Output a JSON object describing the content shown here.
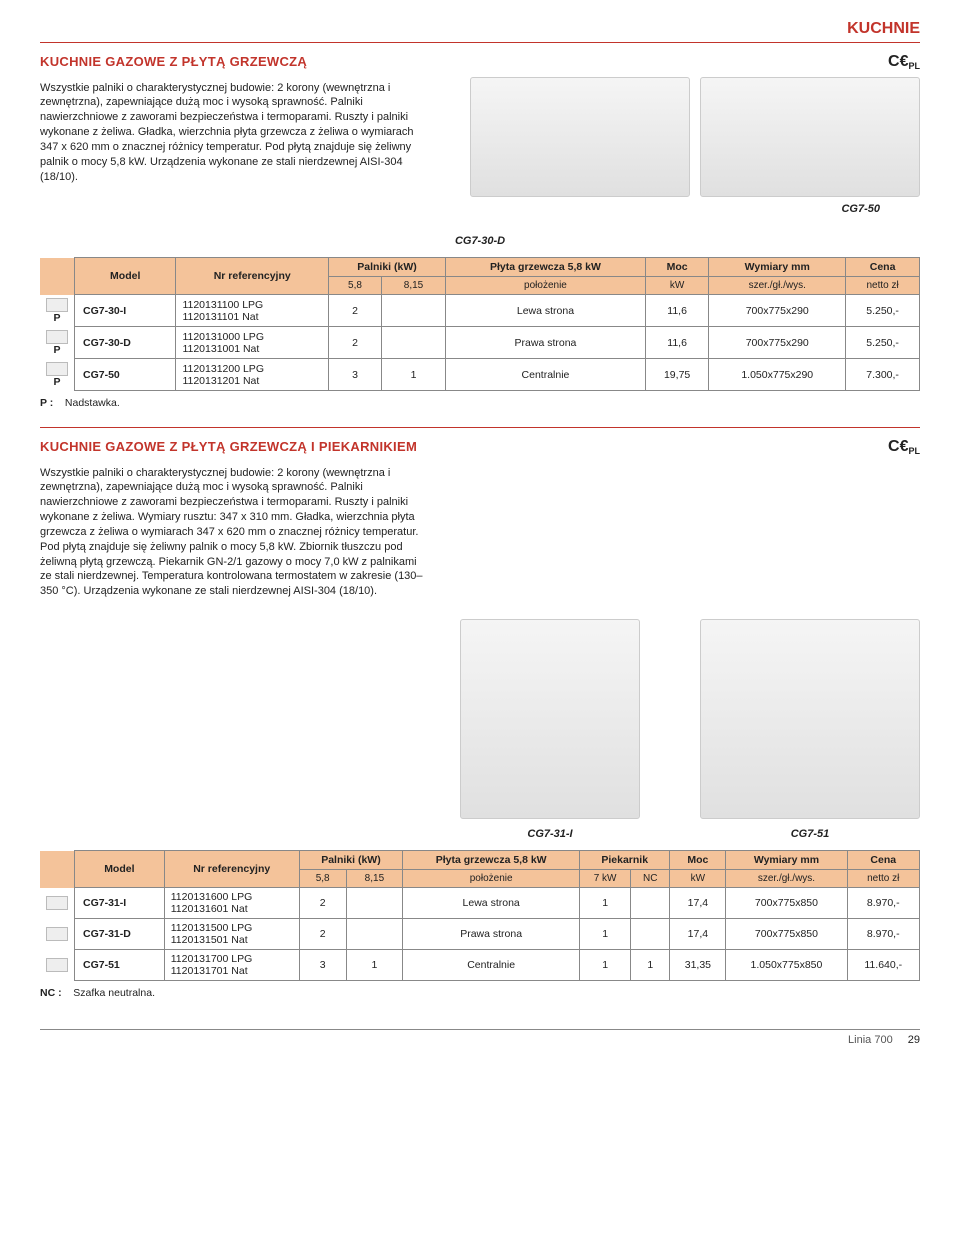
{
  "header": {
    "category": "KUCHNIE"
  },
  "section1": {
    "title": "KUCHNIE GAZOWE Z PŁYTĄ GRZEWCZĄ",
    "ce_label": "PL",
    "description": "Wszystkie palniki o charakterystycznej budowie: 2 korony (wewnętrzna i zewnętrzna), zapewniające dużą moc i wysoką sprawność. Palniki nawierzchniowe z zaworami bezpieczeństwa i termoparami. Ruszty i palniki wykonane z żeliwa. Gładka, wierzchnia płyta grzewcza z żeliwa o wymiarach 347 x 620 mm o znacznej różnicy temperatur. Pod płytą znajduje się żeliwny palnik o mocy 5,8 kW. Urządzenia wykonane ze stali nierdzewnej AISI-304 (18/10).",
    "img_caption_main": "CG7-50",
    "img_caption_mid": "CG7-30-D",
    "table": {
      "headers": {
        "model": "Model",
        "ref": "Nr referencyjny",
        "burners": "Palniki (kW)",
        "b58": "5,8",
        "b815": "8,15",
        "plate": "Płyta grzewcza 5,8 kW",
        "plate_pos": "położenie",
        "power": "Moc",
        "power_unit": "kW",
        "dims": "Wymiary mm",
        "dims_sub": "szer./gł./wys.",
        "price": "Cena",
        "price_sub": "netto zł"
      },
      "rows": [
        {
          "marker": "P",
          "model": "CG7-30-I",
          "ref1": "1120131100 LPG",
          "ref2": "1120131101 Nat",
          "b58": "2",
          "b815": "",
          "pos": "Lewa strona",
          "power": "11,6",
          "dims": "700x775x290",
          "price": "5.250,-"
        },
        {
          "marker": "P",
          "model": "CG7-30-D",
          "ref1": "1120131000 LPG",
          "ref2": "1120131001 Nat",
          "b58": "2",
          "b815": "",
          "pos": "Prawa strona",
          "power": "11,6",
          "dims": "700x775x290",
          "price": "5.250,-"
        },
        {
          "marker": "P",
          "model": "CG7-50",
          "ref1": "1120131200 LPG",
          "ref2": "1120131201 Nat",
          "b58": "3",
          "b815": "1",
          "pos": "Centralnie",
          "power": "19,75",
          "dims": "1.050x775x290",
          "price": "7.300,-"
        }
      ],
      "note_label": "P :",
      "note_text": "Nadstawka."
    }
  },
  "section2": {
    "title": "KUCHNIE GAZOWE Z PŁYTĄ GRZEWCZĄ I PIEKARNIKIEM",
    "ce_label": "PL",
    "description": "Wszystkie palniki o charakterystycznej budowie: 2 korony (wewnętrzna i zewnętrzna), zapewniające dużą moc i wysoką sprawność. Palniki nawierzchniowe z zaworami bezpieczeństwa i termoparami. Ruszty i palniki wykonane z żeliwa. Wymiary rusztu: 347 x 310 mm. Gładka, wierzchnia płyta grzewcza z żeliwa o wymiarach 347 x 620 mm o znacznej różnicy temperatur. Pod płytą znajduje się żeliwny palnik o mocy 5,8 kW. Zbiornik tłuszczu pod żeliwną płytą grzewczą. Piekarnik GN-2/1 gazowy o mocy 7,0 kW z palnikami ze stali nierdzewnej. Temperatura kontrolowana termostatem w zakresie (130–350 °C). Urządzenia wykonane ze stali nierdzewnej AISI-304 (18/10).",
    "img_caption_1": "CG7-31-I",
    "img_caption_2": "CG7-51",
    "table": {
      "headers": {
        "model": "Model",
        "ref": "Nr referencyjny",
        "burners": "Palniki (kW)",
        "b58": "5,8",
        "b815": "8,15",
        "plate": "Płyta grzewcza 5,8 kW",
        "plate_pos": "położenie",
        "oven": "Piekarnik",
        "oven7": "7 kW",
        "ovenNC": "NC",
        "power": "Moc",
        "power_unit": "kW",
        "dims": "Wymiary mm",
        "dims_sub": "szer./gł./wys.",
        "price": "Cena",
        "price_sub": "netto zł"
      },
      "rows": [
        {
          "model": "CG7-31-I",
          "ref1": "1120131600 LPG",
          "ref2": "1120131601 Nat",
          "b58": "2",
          "b815": "",
          "pos": "Lewa strona",
          "oven7": "1",
          "ovenNC": "",
          "power": "17,4",
          "dims": "700x775x850",
          "price": "8.970,-"
        },
        {
          "model": "CG7-31-D",
          "ref1": "1120131500 LPG",
          "ref2": "1120131501 Nat",
          "b58": "2",
          "b815": "",
          "pos": "Prawa strona",
          "oven7": "1",
          "ovenNC": "",
          "power": "17,4",
          "dims": "700x775x850",
          "price": "8.970,-"
        },
        {
          "model": "CG7-51",
          "ref1": "1120131700 LPG",
          "ref2": "1120131701 Nat",
          "b58": "3",
          "b815": "1",
          "pos": "Centralnie",
          "oven7": "1",
          "ovenNC": "1",
          "power": "31,35",
          "dims": "1.050x775x850",
          "price": "11.640,-"
        }
      ],
      "note_label": "NC :",
      "note_text": "Szafka neutralna."
    }
  },
  "footer": {
    "line": "Linia 700",
    "page": "29"
  }
}
